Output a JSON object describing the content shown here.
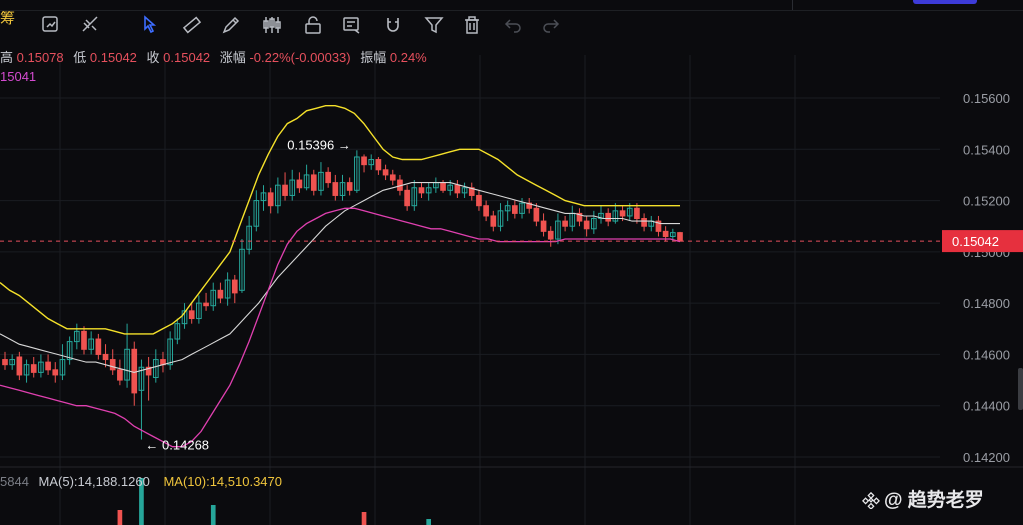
{
  "toolbar": {
    "symbol_fragment": "筹",
    "icons": [
      "compare-icon",
      "indicator-icon",
      "cursor-icon",
      "ruler-icon",
      "pencil-icon",
      "candlestick-icon",
      "lock-icon",
      "annotation-icon",
      "magnet-icon",
      "filter-icon",
      "trash-icon",
      "undo-icon",
      "redo-icon"
    ]
  },
  "ohlc": {
    "high_label": "高",
    "high": "0.15078",
    "low_label": "低",
    "low": "0.15042",
    "close_label": "收",
    "close": "0.15042",
    "change_label": "涨幅",
    "change": "-0.22%(-0.00033)",
    "amplitude_label": "振幅",
    "amplitude": "0.24%"
  },
  "ma_partial": "15041",
  "volume": {
    "value_partial": "5844",
    "ma5": "MA(5):14,188.1260",
    "ma10": "MA(10):14,510.3470"
  },
  "watermark": "@ 趋势老罗",
  "colors": {
    "up": "#26a69a",
    "down": "#ef5350",
    "upper_band": "#f5e12a",
    "middle_band": "#d8d8d8",
    "lower_band": "#e040b0",
    "price_line": "#e6505d"
  },
  "chart_data": {
    "type": "candlestick",
    "y_ticks": [
      "0.15600",
      "0.15400",
      "0.15200",
      "0.15000",
      "0.14800",
      "0.14600",
      "0.14400",
      "0.14200"
    ],
    "ylim": [
      0.1415,
      0.1568
    ],
    "current_price": "0.15042",
    "annotations": [
      {
        "label": "0.15396 →",
        "x_index": 49,
        "y": 0.15396
      },
      {
        "label": "← 0.14268",
        "x_index": 19,
        "y": 0.14268
      }
    ],
    "candles": [
      [
        0.1458,
        0.1456,
        0.1461,
        0.1454
      ],
      [
        0.1456,
        0.1458,
        0.146,
        0.1454
      ],
      [
        0.1459,
        0.1452,
        0.1461,
        0.145
      ],
      [
        0.1452,
        0.1456,
        0.1458,
        0.1449
      ],
      [
        0.1456,
        0.1453,
        0.1459,
        0.1451
      ],
      [
        0.1453,
        0.1457,
        0.146,
        0.1451
      ],
      [
        0.1457,
        0.1454,
        0.146,
        0.1452
      ],
      [
        0.1454,
        0.1452,
        0.1457,
        0.1449
      ],
      [
        0.1452,
        0.1458,
        0.1464,
        0.145
      ],
      [
        0.1458,
        0.1465,
        0.1467,
        0.1456
      ],
      [
        0.1465,
        0.1469,
        0.1472,
        0.1462
      ],
      [
        0.1469,
        0.1462,
        0.1471,
        0.146
      ],
      [
        0.1462,
        0.1466,
        0.1469,
        0.146
      ],
      [
        0.1466,
        0.146,
        0.1468,
        0.1458
      ],
      [
        0.146,
        0.1458,
        0.1464,
        0.1455
      ],
      [
        0.1458,
        0.1454,
        0.1462,
        0.1452
      ],
      [
        0.1454,
        0.145,
        0.1458,
        0.1448
      ],
      [
        0.145,
        0.1462,
        0.1472,
        0.1447
      ],
      [
        0.1462,
        0.1445,
        0.1465,
        0.144
      ],
      [
        0.1446,
        0.1455,
        0.1458,
        0.14268
      ],
      [
        0.1455,
        0.1452,
        0.1459,
        0.1442
      ],
      [
        0.1451,
        0.1458,
        0.1462,
        0.1449
      ],
      [
        0.1458,
        0.1456,
        0.1461,
        0.1453
      ],
      [
        0.1456,
        0.1466,
        0.1469,
        0.1454
      ],
      [
        0.1466,
        0.1472,
        0.1474,
        0.1464
      ],
      [
        0.1472,
        0.1477,
        0.148,
        0.147
      ],
      [
        0.1477,
        0.1474,
        0.148,
        0.1472
      ],
      [
        0.1474,
        0.148,
        0.1483,
        0.1472
      ],
      [
        0.148,
        0.1479,
        0.1484,
        0.1477
      ],
      [
        0.1479,
        0.1485,
        0.1488,
        0.1477
      ],
      [
        0.1485,
        0.1482,
        0.1488,
        0.148
      ],
      [
        0.1482,
        0.1489,
        0.1492,
        0.1479
      ],
      [
        0.1489,
        0.1484,
        0.1491,
        0.148
      ],
      [
        0.1485,
        0.1501,
        0.1505,
        0.1484
      ],
      [
        0.1501,
        0.151,
        0.1514,
        0.1499
      ],
      [
        0.151,
        0.152,
        0.1524,
        0.1508
      ],
      [
        0.152,
        0.1523,
        0.1526,
        0.1516
      ],
      [
        0.1523,
        0.1518,
        0.1525,
        0.1515
      ],
      [
        0.1518,
        0.1526,
        0.1529,
        0.1515
      ],
      [
        0.1526,
        0.1522,
        0.1531,
        0.152
      ],
      [
        0.1522,
        0.1528,
        0.1532,
        0.152
      ],
      [
        0.1528,
        0.1525,
        0.1531,
        0.1523
      ],
      [
        0.1525,
        0.153,
        0.1534,
        0.1524
      ],
      [
        0.153,
        0.1524,
        0.1532,
        0.1522
      ],
      [
        0.1524,
        0.1531,
        0.1535,
        0.1522
      ],
      [
        0.1531,
        0.1527,
        0.1533,
        0.1525
      ],
      [
        0.1527,
        0.1522,
        0.153,
        0.152
      ],
      [
        0.1522,
        0.1527,
        0.153,
        0.152
      ],
      [
        0.1527,
        0.1524,
        0.1529,
        0.1522
      ],
      [
        0.1524,
        0.1537,
        0.15396,
        0.1523
      ],
      [
        0.1537,
        0.1534,
        0.1538,
        0.1531
      ],
      [
        0.1534,
        0.1536,
        0.1538,
        0.1532
      ],
      [
        0.1536,
        0.1532,
        0.1537,
        0.153
      ],
      [
        0.1532,
        0.153,
        0.1534,
        0.1528
      ],
      [
        0.153,
        0.1528,
        0.1532,
        0.1526
      ],
      [
        0.1528,
        0.1524,
        0.153,
        0.1522
      ],
      [
        0.1524,
        0.1518,
        0.1526,
        0.1516
      ],
      [
        0.1518,
        0.1525,
        0.1528,
        0.1516
      ],
      [
        0.1525,
        0.1523,
        0.1527,
        0.1521
      ],
      [
        0.1523,
        0.1525,
        0.1527,
        0.152
      ],
      [
        0.1525,
        0.1527,
        0.1529,
        0.1523
      ],
      [
        0.1527,
        0.1524,
        0.1528,
        0.1523
      ],
      [
        0.1524,
        0.1526,
        0.1528,
        0.1522
      ],
      [
        0.1526,
        0.1523,
        0.1528,
        0.1521
      ],
      [
        0.1523,
        0.1525,
        0.1527,
        0.1521
      ],
      [
        0.1525,
        0.1522,
        0.1527,
        0.152
      ],
      [
        0.1522,
        0.1518,
        0.1524,
        0.1516
      ],
      [
        0.1518,
        0.1514,
        0.152,
        0.1512
      ],
      [
        0.1514,
        0.151,
        0.1516,
        0.1508
      ],
      [
        0.151,
        0.1516,
        0.1519,
        0.1508
      ],
      [
        0.1516,
        0.1518,
        0.152,
        0.1512
      ],
      [
        0.1518,
        0.1515,
        0.152,
        0.1513
      ],
      [
        0.1515,
        0.1519,
        0.1521,
        0.1513
      ],
      [
        0.1519,
        0.1517,
        0.1521,
        0.1515
      ],
      [
        0.1517,
        0.1512,
        0.1519,
        0.151
      ],
      [
        0.1512,
        0.1508,
        0.1515,
        0.1506
      ],
      [
        0.1508,
        0.1505,
        0.151,
        0.1502
      ],
      [
        0.1505,
        0.1512,
        0.1515,
        0.1503
      ],
      [
        0.1512,
        0.151,
        0.1514,
        0.1508
      ],
      [
        0.151,
        0.1515,
        0.1518,
        0.1508
      ],
      [
        0.1515,
        0.1512,
        0.1517,
        0.151
      ],
      [
        0.1512,
        0.1509,
        0.1514,
        0.1506
      ],
      [
        0.1509,
        0.1513,
        0.1516,
        0.1507
      ],
      [
        0.1513,
        0.1515,
        0.1518,
        0.1511
      ],
      [
        0.1515,
        0.1512,
        0.1517,
        0.151
      ],
      [
        0.1512,
        0.1516,
        0.1519,
        0.1511
      ],
      [
        0.1516,
        0.1514,
        0.1518,
        0.1512
      ],
      [
        0.1514,
        0.1517,
        0.1519,
        0.1512
      ],
      [
        0.1517,
        0.1513,
        0.1519,
        0.1511
      ],
      [
        0.1513,
        0.151,
        0.1515,
        0.1508
      ],
      [
        0.151,
        0.1512,
        0.1514,
        0.1508
      ],
      [
        0.1512,
        0.1508,
        0.1514,
        0.1506
      ],
      [
        0.1508,
        0.1506,
        0.151,
        0.1504
      ],
      [
        0.1506,
        0.15075,
        0.1509,
        0.1504
      ],
      [
        0.15075,
        0.15042,
        0.15078,
        0.15042
      ]
    ],
    "upper_band": [
      0.1488,
      0.1485,
      0.1483,
      0.148,
      0.1477,
      0.1474,
      0.1472,
      0.147,
      0.147,
      0.147,
      0.147,
      0.147,
      0.1469,
      0.1468,
      0.1468,
      0.1468,
      0.1468,
      0.147,
      0.1472,
      0.1475,
      0.148,
      0.1485,
      0.149,
      0.1495,
      0.15,
      0.151,
      0.152,
      0.153,
      0.1538,
      0.1545,
      0.155,
      0.1552,
      0.1555,
      0.1556,
      0.1557,
      0.1557,
      0.1556,
      0.1554,
      0.155,
      0.1545,
      0.154,
      0.1537,
      0.1536,
      0.1536,
      0.1536,
      0.1537,
      0.1538,
      0.1539,
      0.154,
      0.154,
      0.154,
      0.1538,
      0.1536,
      0.1533,
      0.153,
      0.1528,
      0.1526,
      0.1524,
      0.1522,
      0.152,
      0.1519,
      0.1518,
      0.1518,
      0.1518,
      0.1518,
      0.1518,
      0.1518,
      0.1518,
      0.1518,
      0.1518,
      0.1518,
      0.1518
    ],
    "lower_band": [
      0.1448,
      0.1447,
      0.1446,
      0.1445,
      0.1444,
      0.1443,
      0.1442,
      0.1441,
      0.144,
      0.144,
      0.1439,
      0.1438,
      0.1437,
      0.1435,
      0.1432,
      0.143,
      0.1428,
      0.1426,
      0.1424,
      0.1424,
      0.1426,
      0.143,
      0.1436,
      0.1442,
      0.1448,
      0.1456,
      0.1465,
      0.1475,
      0.1485,
      0.1495,
      0.1503,
      0.1508,
      0.1511,
      0.1513,
      0.1515,
      0.1516,
      0.1517,
      0.1517,
      0.1516,
      0.1515,
      0.1514,
      0.1513,
      0.1512,
      0.1511,
      0.151,
      0.1509,
      0.1509,
      0.1508,
      0.1507,
      0.1506,
      0.1505,
      0.1505,
      0.1504,
      0.1504,
      0.1504,
      0.1504,
      0.1504,
      0.1504,
      0.1504,
      0.1505,
      0.1505,
      0.1505,
      0.1505,
      0.1505,
      0.1505,
      0.1505,
      0.1505,
      0.1505,
      0.1505,
      0.1505,
      0.1505,
      0.1504
    ],
    "middle_band": [
      0.1468,
      0.1466,
      0.1464,
      0.1463,
      0.1462,
      0.1461,
      0.146,
      0.1459,
      0.1458,
      0.1457,
      0.1457,
      0.1456,
      0.1455,
      0.1454,
      0.1453,
      0.1454,
      0.1455,
      0.1456,
      0.1457,
      0.1458,
      0.146,
      0.1462,
      0.1464,
      0.1466,
      0.1468,
      0.1472,
      0.1476,
      0.148,
      0.1485,
      0.149,
      0.1494,
      0.1498,
      0.1502,
      0.1506,
      0.151,
      0.1513,
      0.1516,
      0.1518,
      0.152,
      0.1522,
      0.1524,
      0.1525,
      0.1526,
      0.1527,
      0.1527,
      0.1527,
      0.1527,
      0.1527,
      0.1526,
      0.1525,
      0.1524,
      0.1523,
      0.1522,
      0.1521,
      0.152,
      0.1519,
      0.1518,
      0.1517,
      0.1516,
      0.1515,
      0.1515,
      0.1514,
      0.1514,
      0.1513,
      0.1513,
      0.1513,
      0.1512,
      0.1512,
      0.1512,
      0.1511,
      0.1511,
      0.1511
    ]
  }
}
